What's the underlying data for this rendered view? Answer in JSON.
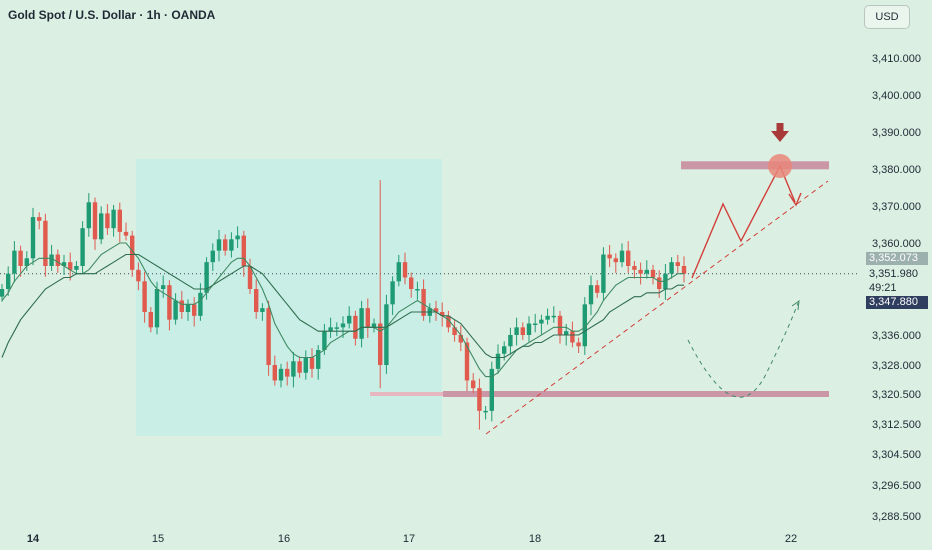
{
  "header": {
    "title": "Gold Spot / U.S. Dollar · 1h · OANDA",
    "currency": "USD"
  },
  "price_tags": {
    "upper": "3,352.073",
    "last": "3,351.980",
    "countdown": "49:21",
    "lower": "3,347.880"
  },
  "colors": {
    "background": "#dcefe3",
    "bull": "#1f9b73",
    "bear": "#e05a4e",
    "box": "#c6ede6",
    "zone": "#c98c9f",
    "projection": "#d23f3a",
    "target": "#e9877a"
  },
  "chart_data": {
    "type": "candlestick",
    "title": "Gold Spot / U.S. Dollar · 1h · OANDA",
    "xlabel": "",
    "ylabel": "",
    "x_ticks": [
      "14",
      "15",
      "16",
      "17",
      "18",
      "21",
      "22"
    ],
    "y_ticks": [
      "3,410.000",
      "3,400.000",
      "3,390.000",
      "3,380.000",
      "3,370.000",
      "3,360.000",
      "3,336.000",
      "3,328.000",
      "3,320.500",
      "3,312.500",
      "3,304.500",
      "3,296.500",
      "3,288.500"
    ],
    "grid": false,
    "series": [
      {
        "type": "candles",
        "close_path": [
          3348,
          3352,
          3358,
          3354,
          3356,
          3367,
          3366,
          3354,
          3357,
          3354,
          3355,
          3353,
          3354,
          3364,
          3371,
          3361,
          3368,
          3364,
          3369,
          3363,
          3362,
          3353,
          3350,
          3342,
          3338,
          3348,
          3349,
          3340,
          3345,
          3342,
          3344,
          3341,
          3347,
          3355,
          3358,
          3361,
          3358,
          3361,
          3362,
          3354,
          3348,
          3342,
          3343,
          3328,
          3324,
          3327,
          3325,
          3329,
          3326,
          3330,
          3327,
          3332,
          3337,
          3338,
          3338,
          3339,
          3341,
          3335,
          3343,
          3338,
          3339,
          3328,
          3344,
          3350,
          3355,
          3351,
          3348,
          3348,
          3341,
          3343,
          3342,
          3341,
          3338,
          3336,
          3334,
          3324,
          3322,
          3316,
          3316,
          3327,
          3331,
          3333,
          3336,
          3338,
          3336,
          3339,
          3339,
          3340,
          3341,
          3341,
          3336,
          3337,
          3334,
          3333,
          3344,
          3349,
          3347,
          3357,
          3356,
          3355,
          3358,
          3354,
          3353,
          3352,
          3353,
          3351,
          3348,
          3352,
          3355,
          3354,
          3352
        ]
      },
      {
        "type": "moving-average",
        "name": "",
        "values": [
          3345,
          3347,
          3350,
          3352,
          3354,
          3355,
          3356,
          3356,
          3356,
          3355,
          3354,
          3353,
          3352,
          3352,
          3353,
          3355,
          3357,
          3358,
          3359,
          3360,
          3360,
          3358,
          3356,
          3353,
          3350,
          3348,
          3347,
          3346,
          3345,
          3344,
          3344,
          3344,
          3345,
          3347,
          3349,
          3351,
          3353,
          3355,
          3356,
          3356,
          3354,
          3351,
          3348,
          3344,
          3339,
          3336,
          3333,
          3331,
          3330,
          3330,
          3330,
          3331,
          3332,
          3334,
          3335,
          3336,
          3337,
          3337,
          3338,
          3338,
          3338,
          3337,
          3338,
          3340,
          3342,
          3343,
          3344,
          3345,
          3344,
          3343,
          3342,
          3341,
          3340,
          3338,
          3336,
          3333,
          3330,
          3327,
          3325,
          3325,
          3326,
          3328,
          3330,
          3332,
          3333,
          3334,
          3335,
          3336,
          3337,
          3338,
          3338,
          3338,
          3337,
          3337,
          3338,
          3340,
          3342,
          3345,
          3347,
          3349,
          3350,
          3351,
          3351,
          3351,
          3351,
          3351,
          3350,
          3350,
          3351,
          3352,
          3352
        ]
      },
      {
        "type": "moving-average",
        "name": "",
        "values": [
          3330,
          3334,
          3337,
          3340,
          3342,
          3344,
          3346,
          3348,
          3349,
          3350,
          3351,
          3351,
          3352,
          3352,
          3352,
          3352,
          3353,
          3354,
          3355,
          3356,
          3357,
          3357,
          3357,
          3356,
          3355,
          3354,
          3353,
          3352,
          3351,
          3350,
          3349,
          3348,
          3348,
          3348,
          3349,
          3350,
          3351,
          3352,
          3353,
          3354,
          3354,
          3353,
          3352,
          3350,
          3348,
          3346,
          3344,
          3342,
          3340,
          3339,
          3338,
          3337,
          3337,
          3337,
          3337,
          3337,
          3337,
          3337,
          3338,
          3338,
          3338,
          3338,
          3338,
          3339,
          3340,
          3341,
          3342,
          3342,
          3342,
          3342,
          3342,
          3341,
          3341,
          3340,
          3339,
          3337,
          3335,
          3333,
          3331,
          3330,
          3330,
          3330,
          3331,
          3332,
          3333,
          3333,
          3334,
          3334,
          3335,
          3336,
          3336,
          3336,
          3336,
          3336,
          3337,
          3338,
          3339,
          3340,
          3342,
          3343,
          3344,
          3345,
          3346,
          3346,
          3347,
          3347,
          3347,
          3348,
          3348,
          3349,
          3349
        ]
      }
    ],
    "levels": {
      "last_price": 3351.98,
      "resistance_zone": 3381,
      "support_zone": 3320.5,
      "support_line": 3320.5
    }
  }
}
